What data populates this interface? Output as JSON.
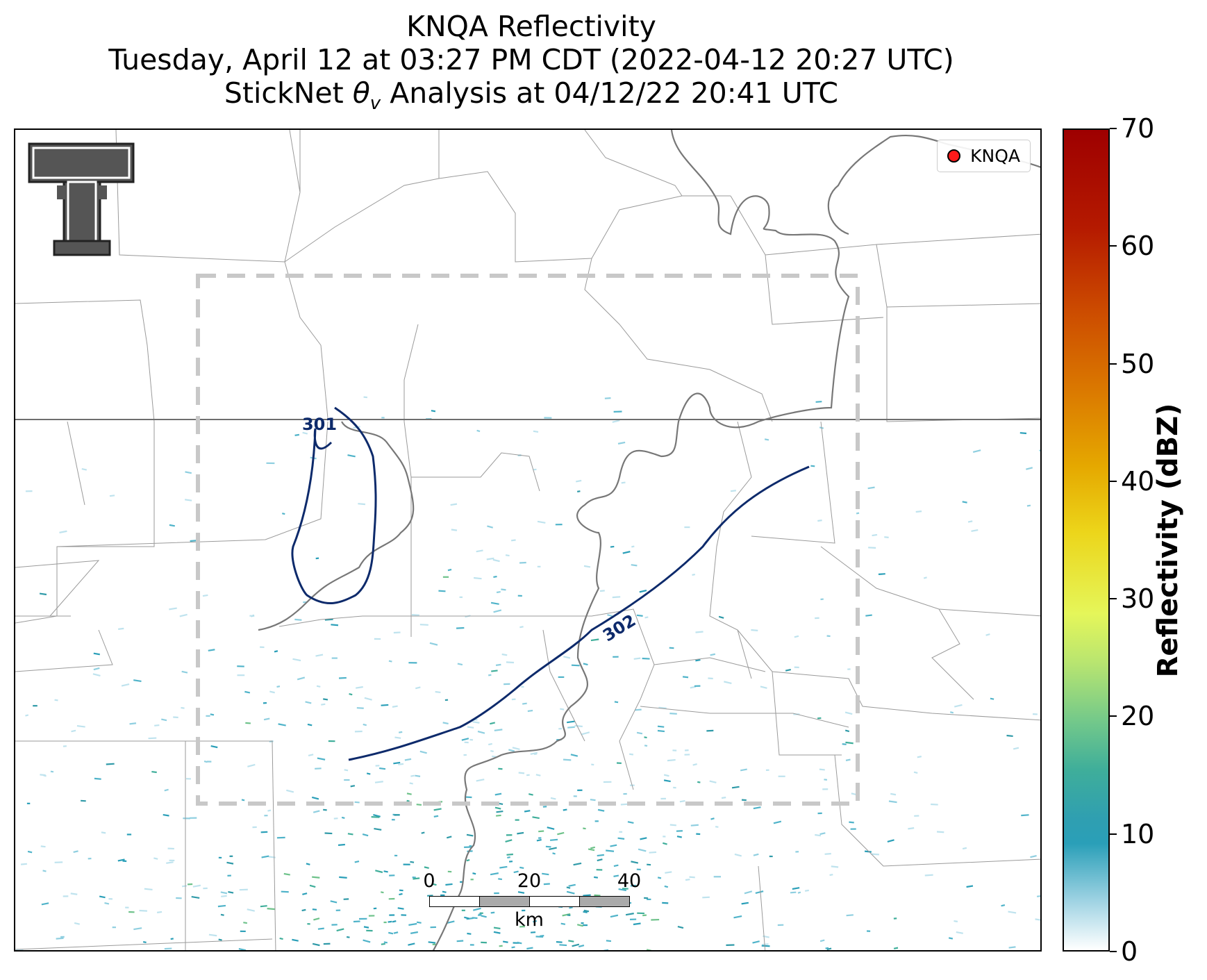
{
  "title": {
    "line1": "KNQA Reflectivity",
    "line2": "Tuesday, April 12 at 03:27 PM CDT (2022-04-12 20:27 UTC)",
    "line3_prefix": "StickNet ",
    "line3_symbol": "θ",
    "line3_subscript": "v",
    "line3_suffix": " Analysis at 04/12/22 20:41 UTC"
  },
  "legend": {
    "station_label": "KNQA",
    "station_color": "#ff1a1a"
  },
  "colorbar": {
    "title": "Reflectivity (dBZ)",
    "ticks": [
      "0",
      "10",
      "20",
      "30",
      "40",
      "50",
      "60",
      "70"
    ],
    "range": [
      0,
      70
    ]
  },
  "contours": [
    {
      "value": "301",
      "color": "#0d2a6b"
    },
    {
      "value": "302",
      "color": "#0d2a6b"
    }
  ],
  "scale_bar": {
    "ticks": [
      "0",
      "20",
      "40"
    ],
    "unit": "km"
  },
  "colors": {
    "contour": "#0d2a6b",
    "analysis_box": "#c8c8c8",
    "river": "#777777",
    "county_lines": "#999999"
  },
  "logo": "texas-tech-double-t-logo"
}
